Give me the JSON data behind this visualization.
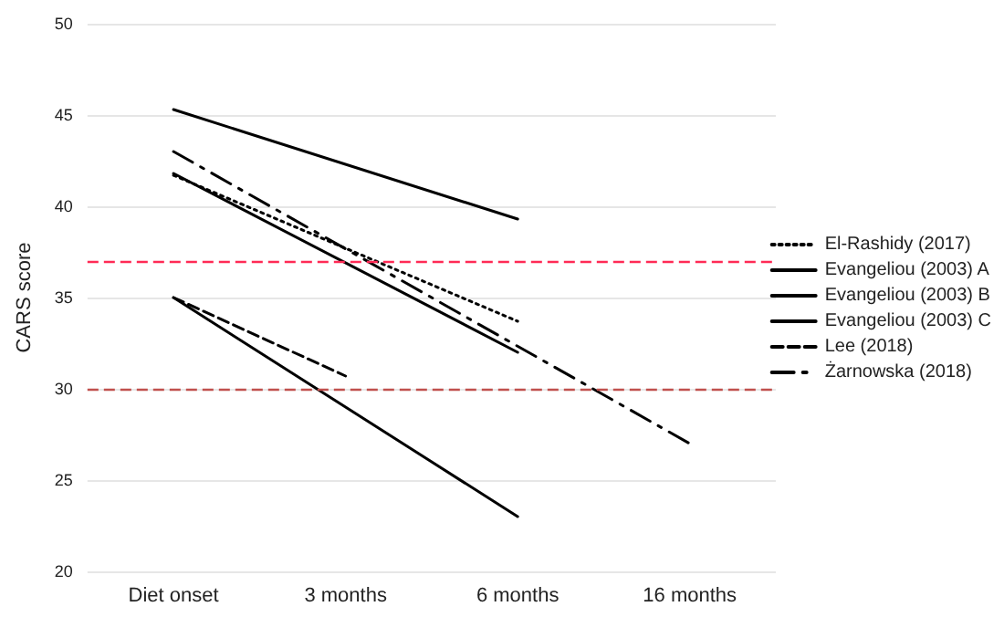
{
  "chart_data": {
    "type": "line",
    "ylabel": "CARS score",
    "categories": [
      "Diet onset",
      "3 months",
      "6 months",
      "16 months"
    ],
    "series": [
      {
        "name": "El-Rashidy (2017)",
        "color": "#000000",
        "line_style": "dotted",
        "values": [
          41.7,
          null,
          33.7,
          null
        ]
      },
      {
        "name": "Evangeliou (2003) A",
        "color": "#000000",
        "line_style": "solid",
        "values": [
          45.3,
          null,
          39.3,
          null
        ]
      },
      {
        "name": "Evangeliou (2003) B",
        "color": "#000000",
        "line_style": "solid",
        "values": [
          41.8,
          null,
          32.0,
          null
        ]
      },
      {
        "name": "Evangeliou (2003) C",
        "color": "#000000",
        "line_style": "solid",
        "values": [
          35.0,
          null,
          23.0,
          null
        ]
      },
      {
        "name": "Lee (2018)",
        "color": "#000000",
        "line_style": "dashed",
        "values": [
          35.0,
          30.7,
          null,
          null
        ]
      },
      {
        "name": "Żarnowska (2018)",
        "color": "#000000",
        "line_style": "dashdot",
        "values": [
          43.0,
          null,
          null,
          27.0
        ]
      }
    ],
    "ylim": [
      20,
      50
    ],
    "yticks": [
      20,
      25,
      30,
      35,
      40,
      45,
      50
    ],
    "grid": "y",
    "legend": "right",
    "marker": "none",
    "ref_lines": [
      {
        "axis": "y",
        "value": 37,
        "color": "#ff2a55",
        "line_style": "dashed"
      },
      {
        "axis": "y",
        "value": 30,
        "color": "#c0504d",
        "line_style": "dashed"
      }
    ]
  }
}
